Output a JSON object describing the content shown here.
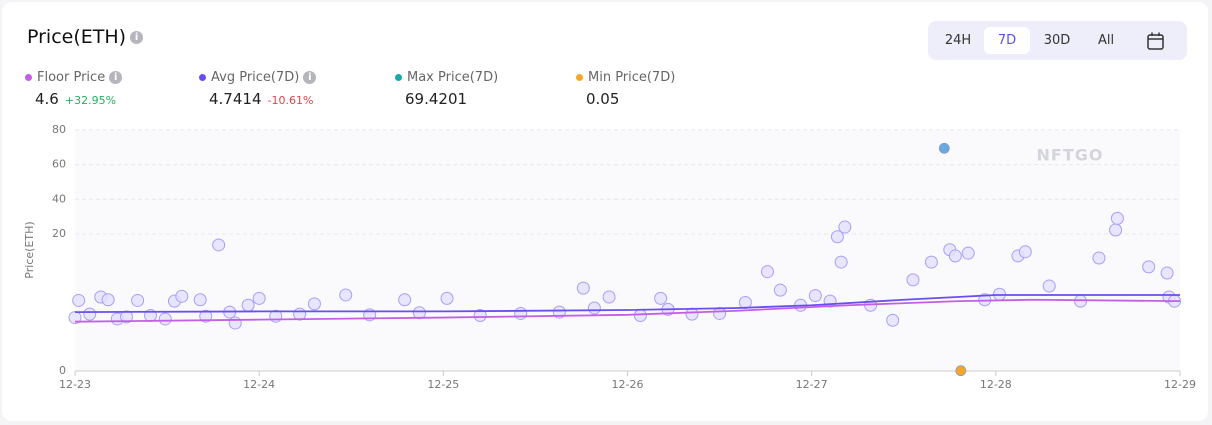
{
  "chart_data": {
    "type": "scatter",
    "title": "Price(ETH)",
    "ylabel": "Price(ETH)",
    "watermark": "NFTGO",
    "ranges": [
      "24H",
      "7D",
      "30D",
      "All"
    ],
    "xlim": [
      0,
      6
    ],
    "xticks": [
      {
        "value": 0,
        "label": "12-23"
      },
      {
        "value": 1,
        "label": "12-24"
      },
      {
        "value": 2,
        "label": "12-25"
      },
      {
        "value": 3,
        "label": "12-26"
      },
      {
        "value": 4,
        "label": "12-27"
      },
      {
        "value": 5,
        "label": "12-28"
      },
      {
        "value": 6,
        "label": "12-29"
      }
    ],
    "ylim": [
      0,
      80
    ],
    "yticks": [
      0,
      20,
      40,
      60,
      80
    ],
    "grid": true,
    "series": [
      {
        "name": "Floor Price",
        "color": "#c35fe6",
        "current": "4.6",
        "change": "+32.95%",
        "x": [
          0,
          1,
          2,
          3,
          3.6,
          4.2,
          4.8,
          5.2,
          6
        ],
        "values": [
          7.2,
          7.5,
          7.8,
          8.2,
          8.8,
          9.6,
          10.2,
          10.4,
          10.2
        ]
      },
      {
        "name": "Avg Price(7D)",
        "color": "#6a4df3",
        "current": "4.7414",
        "change": "-10.61%",
        "x": [
          0,
          1,
          2,
          3,
          3.6,
          4.0,
          4.5,
          5.0,
          5.5,
          6
        ],
        "values": [
          8.6,
          8.7,
          8.7,
          8.9,
          9.2,
          9.6,
          10.4,
          11.1,
          11.1,
          11.1
        ]
      }
    ],
    "markers": [
      {
        "name": "Max Price(7D)",
        "color": "#1aa7a7",
        "point_color": "#6aa8e0",
        "current": "69.4201",
        "x": 4.72,
        "value": 69.4201
      },
      {
        "name": "Min Price(7D)",
        "color": "#f5a623",
        "point_color": "#f5a623",
        "current": "0.05",
        "x": 4.81,
        "value": 0.05
      }
    ],
    "points": {
      "color": "#e3e0ff",
      "stroke": "#a79ef5",
      "x": [
        0.0,
        0.02,
        0.08,
        0.14,
        0.18,
        0.23,
        0.28,
        0.34,
        0.41,
        0.49,
        0.54,
        0.58,
        0.68,
        0.71,
        0.78,
        0.84,
        0.87,
        0.94,
        1.0,
        1.09,
        1.22,
        1.3,
        1.47,
        1.6,
        1.79,
        1.87,
        2.02,
        2.2,
        2.42,
        2.63,
        2.76,
        2.82,
        2.9,
        3.07,
        3.18,
        3.22,
        3.35,
        3.5,
        3.64,
        3.76,
        3.83,
        3.94,
        4.02,
        4.1,
        4.14,
        4.16,
        4.18,
        4.32,
        4.44,
        4.55,
        4.65,
        4.75,
        4.78,
        4.85,
        4.94,
        5.02,
        5.12,
        5.16,
        5.29,
        5.46,
        5.56,
        5.65,
        5.66,
        5.83,
        5.93,
        5.94,
        5.97
      ],
      "values": [
        7.8,
        10.3,
        8.3,
        10.8,
        10.4,
        7.6,
        7.9,
        10.3,
        8.1,
        7.6,
        10.2,
        10.9,
        10.4,
        8.0,
        18.4,
        8.6,
        7.0,
        9.6,
        10.6,
        8.0,
        8.3,
        9.8,
        11.1,
        8.2,
        10.4,
        8.5,
        10.6,
        8.1,
        8.4,
        8.6,
        12.1,
        9.2,
        10.8,
        8.1,
        10.6,
        9.0,
        8.3,
        8.4,
        10.0,
        14.5,
        11.8,
        9.6,
        11.0,
        10.2,
        19.6,
        15.9,
        24.0,
        9.6,
        7.4,
        13.3,
        15.9,
        17.7,
        16.8,
        17.2,
        10.4,
        11.2,
        16.8,
        17.4,
        12.4,
        10.2,
        16.5,
        22.3,
        29.0,
        15.2,
        14.3,
        10.8,
        10.2
      ]
    }
  }
}
